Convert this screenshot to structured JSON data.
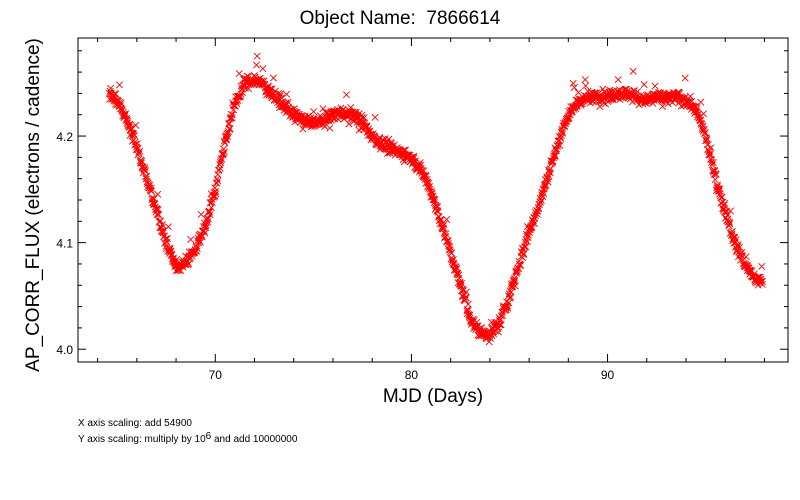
{
  "header": {
    "title_prefix": "Object Name:",
    "object_id": "7866614"
  },
  "footer": {
    "x_scaling": "X axis scaling: add 54900",
    "y_scaling_prefix": "Y axis scaling: multiply by 10",
    "y_scaling_exponent": "6",
    "y_scaling_suffix": " and add 10000000"
  },
  "chart_data": {
    "type": "scatter",
    "marker": "x",
    "marker_color": "#ff0000",
    "axis_color": "#000000",
    "grid": false,
    "title": "Object Name:  7866614",
    "xlabel": "MJD (Days)",
    "ylabel": "AP_CORR_FLUX (electrons / cadence)",
    "xlim": [
      63.0,
      99.2
    ],
    "ylim": [
      3.988,
      4.292
    ],
    "xticks": [
      70,
      80,
      90
    ],
    "xtick_labels": [
      "70",
      "80",
      "90"
    ],
    "yticks": [
      4.0,
      4.1,
      4.2
    ],
    "ytick_labels": [
      "4.0",
      "4.1",
      "4.2"
    ],
    "x_minor_step": 2,
    "y_minor_step": 0.02,
    "series": [
      {
        "color": "#ff0000",
        "curve_knots": {
          "x": [
            64.6,
            65.0,
            65.5,
            66.0,
            66.5,
            67.0,
            67.5,
            68.0,
            68.5,
            69.0,
            69.5,
            70.0,
            70.5,
            71.0,
            71.5,
            72.0,
            72.5,
            73.0,
            73.5,
            74.0,
            74.5,
            75.0,
            75.5,
            76.0,
            76.5,
            77.0,
            77.5,
            78.0,
            78.5,
            79.0,
            79.5,
            80.0,
            80.5,
            81.0,
            81.5,
            82.0,
            82.5,
            83.0,
            83.5,
            84.0,
            84.5,
            85.0,
            85.5,
            86.0,
            86.5,
            87.0,
            87.5,
            88.0,
            88.5,
            89.0,
            89.5,
            90.0,
            90.5,
            91.0,
            91.5,
            92.0,
            92.5,
            93.0,
            93.5,
            94.0,
            94.5,
            95.0,
            95.5,
            96.0,
            96.5,
            97.0,
            97.5,
            97.9
          ],
          "y": [
            4.24,
            4.232,
            4.215,
            4.19,
            4.16,
            4.13,
            4.1,
            4.077,
            4.08,
            4.095,
            4.115,
            4.15,
            4.195,
            4.23,
            4.25,
            4.253,
            4.248,
            4.238,
            4.228,
            4.22,
            4.215,
            4.212,
            4.214,
            4.22,
            4.222,
            4.22,
            4.212,
            4.2,
            4.192,
            4.188,
            4.185,
            4.18,
            4.168,
            4.148,
            4.12,
            4.09,
            4.06,
            4.03,
            4.015,
            4.013,
            4.025,
            4.05,
            4.08,
            4.11,
            4.135,
            4.165,
            4.195,
            4.22,
            4.232,
            4.236,
            4.238,
            4.236,
            4.24,
            4.24,
            4.236,
            4.234,
            4.236,
            4.235,
            4.236,
            4.234,
            4.225,
            4.2,
            4.16,
            4.13,
            4.1,
            4.08,
            4.065,
            4.065
          ]
        },
        "n_points": 1600,
        "scatter_amplitude": 0.006
      }
    ]
  }
}
